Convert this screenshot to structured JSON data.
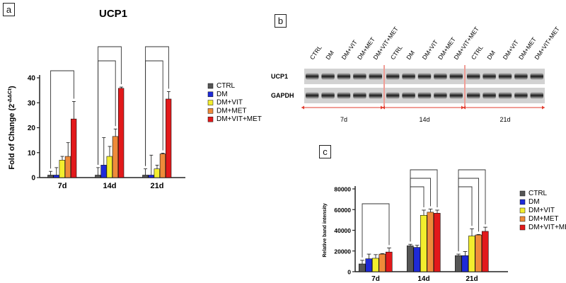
{
  "panels": {
    "a": {
      "label": "a"
    },
    "b": {
      "label": "b"
    },
    "c": {
      "label": "c"
    }
  },
  "colors": {
    "CTRL": "#555555",
    "DM": "#1e2ad8",
    "DM+VIT": "#f3ee2e",
    "DM+MET": "#ef8b3a",
    "DM+VIT+MET": "#e2191b",
    "blot_divider": "#e23b2e"
  },
  "blot": {
    "lanes": [
      "CTRL",
      "DM",
      "DM+VIT",
      "DM+MET",
      "DM+VIT+MET"
    ],
    "rows": [
      "UCP1",
      "GAPDH"
    ],
    "timepoints": [
      "7d",
      "14d",
      "21d"
    ]
  },
  "chart_data": [
    {
      "id": "a",
      "type": "bar",
      "title": "UCP1",
      "ylabel": "Fold of Change (2",
      "ylabel_sup": "-ΔΔCt",
      "ylabel_end": ")",
      "xlabel": "",
      "categories": [
        "7d",
        "14d",
        "21d"
      ],
      "ylim": [
        0,
        40
      ],
      "yticks": [
        0,
        10,
        20,
        30,
        40
      ],
      "grid": false,
      "legend_position": "right",
      "series": [
        {
          "name": "CTRL",
          "values": [
            1,
            1,
            1
          ],
          "errors": [
            1.5,
            3,
            2.5
          ]
        },
        {
          "name": "DM",
          "values": [
            1,
            5,
            1
          ],
          "errors": [
            3,
            11,
            8
          ]
        },
        {
          "name": "DM+VIT",
          "values": [
            7,
            8.5,
            3.5
          ],
          "errors": [
            1.5,
            4,
            1.5
          ]
        },
        {
          "name": "DM+MET",
          "values": [
            8.5,
            16.5,
            9.5
          ],
          "errors": [
            5.5,
            3,
            0.3
          ]
        },
        {
          "name": "DM+VIT+MET",
          "values": [
            23.5,
            35.8,
            31.5
          ],
          "errors": [
            7,
            0.5,
            3
          ]
        }
      ],
      "significance_brackets": true
    },
    {
      "id": "c",
      "type": "bar",
      "title": "",
      "ylabel": "Relative band intensity",
      "xlabel": "",
      "categories": [
        "7d",
        "14d",
        "21d"
      ],
      "ylim": [
        0,
        80000
      ],
      "yticks": [
        0,
        20000,
        40000,
        60000,
        80000
      ],
      "grid": false,
      "legend_position": "right",
      "series": [
        {
          "name": "CTRL",
          "values": [
            7500,
            25000,
            15500
          ],
          "errors": [
            3500,
            1500,
            1500
          ]
        },
        {
          "name": "DM",
          "values": [
            12500,
            23500,
            15500
          ],
          "errors": [
            4500,
            2000,
            4000
          ]
        },
        {
          "name": "DM+VIT",
          "values": [
            13000,
            54500,
            34500
          ],
          "errors": [
            3500,
            5000,
            7000
          ]
        },
        {
          "name": "DM+MET",
          "values": [
            17000,
            57500,
            35500
          ],
          "errors": [
            500,
            3000,
            500
          ]
        },
        {
          "name": "DM+VIT+MET",
          "values": [
            19000,
            56500,
            39000
          ],
          "errors": [
            4000,
            3000,
            4000
          ]
        }
      ],
      "significance_brackets": true
    }
  ]
}
